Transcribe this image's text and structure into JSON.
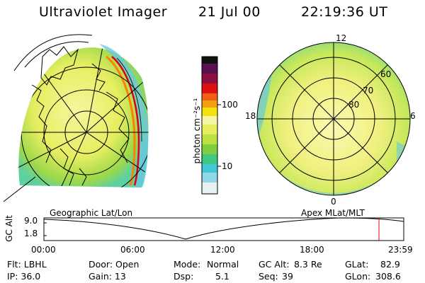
{
  "header": {
    "instrument": "Ultraviolet Imager",
    "date": "21 Jul 00",
    "time": "22:19:36 UT"
  },
  "colorbar": {
    "unit_label": "photon cm⁻²s⁻¹",
    "ticks": [
      "100",
      "10"
    ]
  },
  "left_panel": {
    "caption": "Geographic Lat/Lon"
  },
  "right_panel": {
    "caption": "Apex MLat/MLT",
    "mlt_labels": [
      "12",
      "18",
      "6",
      "0"
    ],
    "lat_labels": [
      "60",
      "70",
      "80"
    ]
  },
  "altitude_plot": {
    "axis_label": "GC Alt",
    "y_ticks": [
      "9.0",
      "1.8"
    ],
    "time_ticks": [
      "00:00",
      "06:00",
      "12:00",
      "18:00",
      "23:59"
    ],
    "marker_time_hours": 22.33
  },
  "info": {
    "flt": "Flt: LBHL",
    "ip": "IP: 36.0",
    "door": "Door: Open",
    "gain": "Gain: 13",
    "mode_label": "Mode:",
    "mode_value": "Normal",
    "dsp_label": "Dsp:",
    "dsp_value": "5.1",
    "gcalt_label": "GC Alt:",
    "gcalt_value": "8.3 Re",
    "seq_label": "Seq:",
    "seq_value": "39",
    "glat_label": "GLat:",
    "glat_value": "82.9",
    "glon_label": "GLon:",
    "glon_value": "308.6"
  }
}
